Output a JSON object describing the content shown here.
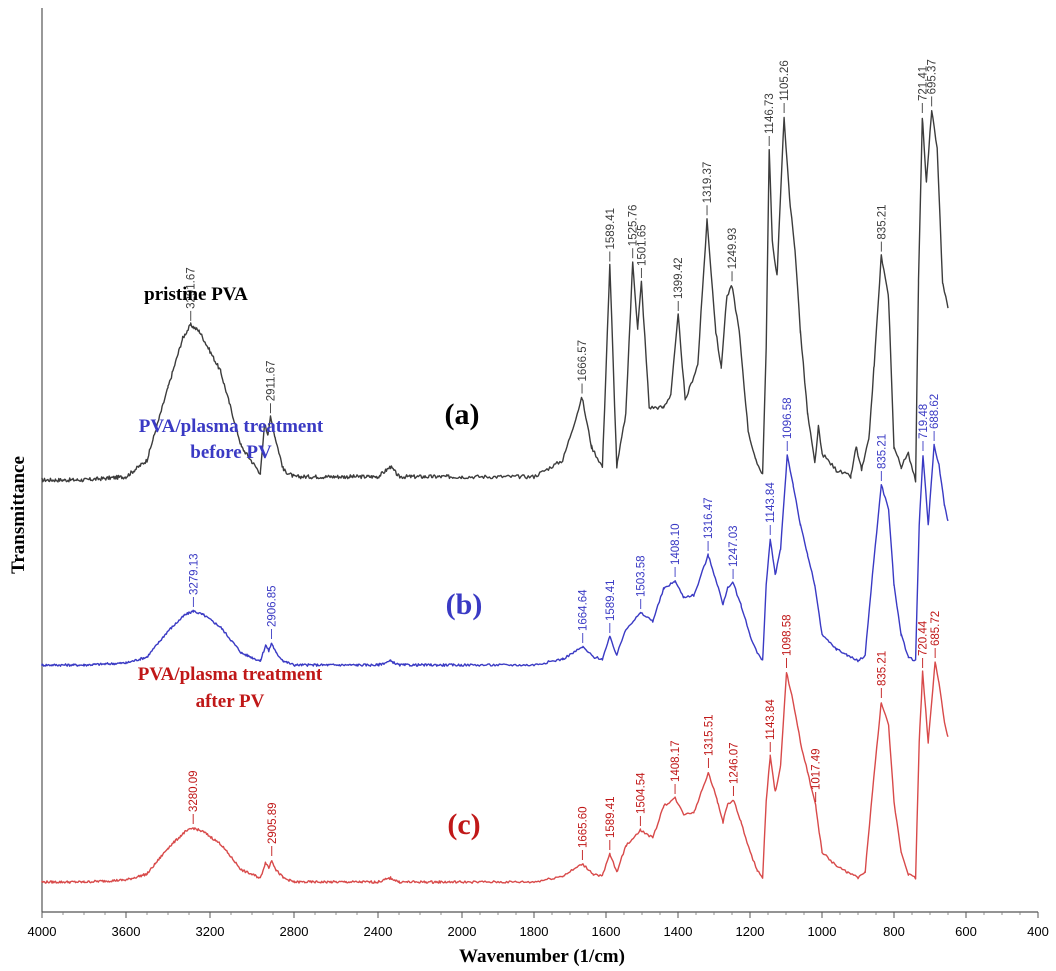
{
  "chart_data": {
    "type": "line",
    "xlabel": "Wavenumber (1/cm)",
    "ylabel": "Transmittance",
    "xlim": [
      4000,
      400
    ],
    "x_reversed": true,
    "x_ticks": [
      "4000",
      "3600",
      "3200",
      "2800",
      "2400",
      "2000",
      "1800",
      "1600",
      "1400",
      "1200",
      "1000",
      "800",
      "600",
      "400"
    ],
    "grid": false,
    "series": [
      {
        "id": "a",
        "panel_label": "(a)",
        "name": "pristine PVA",
        "color": "#3c3c3c",
        "points": [
          [
            4000,
            0.0
          ],
          [
            3800,
            0.0
          ],
          [
            3600,
            0.01
          ],
          [
            3500,
            0.06
          ],
          [
            3400,
            0.28
          ],
          [
            3330,
            0.43
          ],
          [
            3291.67,
            0.47
          ],
          [
            3250,
            0.45
          ],
          [
            3150,
            0.33
          ],
          [
            3050,
            0.1
          ],
          [
            2960,
            0.02
          ],
          [
            2940,
            0.17
          ],
          [
            2925,
            0.14
          ],
          [
            2911.67,
            0.19
          ],
          [
            2890,
            0.13
          ],
          [
            2850,
            0.03
          ],
          [
            2800,
            0.01
          ],
          [
            2400,
            0.01
          ],
          [
            2340,
            0.04
          ],
          [
            2300,
            0.01
          ],
          [
            1800,
            0.01
          ],
          [
            1720,
            0.06
          ],
          [
            1666.57,
            0.25
          ],
          [
            1640,
            0.1
          ],
          [
            1610,
            0.04
          ],
          [
            1589.41,
            0.65
          ],
          [
            1570,
            0.04
          ],
          [
            1545,
            0.2
          ],
          [
            1525.76,
            0.66
          ],
          [
            1512,
            0.46
          ],
          [
            1501.65,
            0.6
          ],
          [
            1480,
            0.22
          ],
          [
            1440,
            0.22
          ],
          [
            1420,
            0.26
          ],
          [
            1399.42,
            0.5
          ],
          [
            1380,
            0.24
          ],
          [
            1345,
            0.35
          ],
          [
            1319.37,
            0.79
          ],
          [
            1295,
            0.45
          ],
          [
            1280,
            0.34
          ],
          [
            1265,
            0.55
          ],
          [
            1249.93,
            0.59
          ],
          [
            1230,
            0.45
          ],
          [
            1205,
            0.15
          ],
          [
            1185,
            0.06
          ],
          [
            1165,
            0.02
          ],
          [
            1155,
            0.4
          ],
          [
            1146.73,
            1.0
          ],
          [
            1138,
            0.72
          ],
          [
            1125,
            0.62
          ],
          [
            1105.26,
            1.1
          ],
          [
            1090,
            0.85
          ],
          [
            1075,
            0.7
          ],
          [
            1060,
            0.45
          ],
          [
            1040,
            0.2
          ],
          [
            1020,
            0.05
          ],
          [
            1010,
            0.16
          ],
          [
            1000,
            0.08
          ],
          [
            960,
            0.03
          ],
          [
            920,
            0.01
          ],
          [
            905,
            0.1
          ],
          [
            890,
            0.03
          ],
          [
            870,
            0.12
          ],
          [
            855,
            0.35
          ],
          [
            835.21,
            0.68
          ],
          [
            815,
            0.55
          ],
          [
            800,
            0.1
          ],
          [
            780,
            0.04
          ],
          [
            760,
            0.08
          ],
          [
            740,
            0.0
          ],
          [
            732,
            0.6
          ],
          [
            721.41,
            1.1
          ],
          [
            710,
            0.9
          ],
          [
            695.37,
            1.12
          ],
          [
            680,
            1.0
          ],
          [
            665,
            0.6
          ],
          [
            650,
            0.52
          ]
        ],
        "peaks": [
          3291.67,
          2911.67,
          1666.57,
          1589.41,
          1525.76,
          1501.65,
          1399.42,
          1319.37,
          1249.93,
          1146.73,
          1105.26,
          835.21,
          721.41,
          695.37
        ],
        "peak_labels": [
          "3291.67",
          "2911.67",
          "1666.57",
          "1589.41",
          "1525.76",
          "1501.65",
          "1399.42",
          "1319.37",
          "1249.93",
          "1146.73",
          "1105.26",
          "835.21",
          "721.41",
          "695.37"
        ]
      },
      {
        "id": "b",
        "panel_label": "(b)",
        "name": "PVA/plasma treatment before PV",
        "name_lines": [
          "PVA/plasma treatment",
          "before PV"
        ],
        "color": "#3a3ac4",
        "points": [
          [
            4000,
            0.0
          ],
          [
            3800,
            0.0
          ],
          [
            3600,
            0.01
          ],
          [
            3500,
            0.04
          ],
          [
            3400,
            0.17
          ],
          [
            3320,
            0.25
          ],
          [
            3279.13,
            0.27
          ],
          [
            3230,
            0.25
          ],
          [
            3150,
            0.19
          ],
          [
            3050,
            0.06
          ],
          [
            2960,
            0.02
          ],
          [
            2935,
            0.1
          ],
          [
            2920,
            0.07
          ],
          [
            2906.85,
            0.11
          ],
          [
            2885,
            0.06
          ],
          [
            2850,
            0.02
          ],
          [
            2800,
            0.0
          ],
          [
            2400,
            0.0
          ],
          [
            2340,
            0.02
          ],
          [
            2300,
            0.0
          ],
          [
            1800,
            0.0
          ],
          [
            1720,
            0.03
          ],
          [
            1664.64,
            0.09
          ],
          [
            1635,
            0.04
          ],
          [
            1610,
            0.03
          ],
          [
            1589.41,
            0.14
          ],
          [
            1570,
            0.05
          ],
          [
            1545,
            0.18
          ],
          [
            1503.58,
            0.26
          ],
          [
            1470,
            0.22
          ],
          [
            1440,
            0.38
          ],
          [
            1408.1,
            0.42
          ],
          [
            1385,
            0.34
          ],
          [
            1355,
            0.35
          ],
          [
            1316.47,
            0.55
          ],
          [
            1290,
            0.4
          ],
          [
            1275,
            0.3
          ],
          [
            1262,
            0.39
          ],
          [
            1247.03,
            0.41
          ],
          [
            1225,
            0.3
          ],
          [
            1200,
            0.15
          ],
          [
            1180,
            0.06
          ],
          [
            1165,
            0.02
          ],
          [
            1155,
            0.4
          ],
          [
            1143.84,
            0.63
          ],
          [
            1130,
            0.45
          ],
          [
            1115,
            0.58
          ],
          [
            1096.58,
            1.05
          ],
          [
            1080,
            0.9
          ],
          [
            1060,
            0.7
          ],
          [
            1040,
            0.55
          ],
          [
            1020,
            0.4
          ],
          [
            1000,
            0.15
          ],
          [
            960,
            0.08
          ],
          [
            930,
            0.05
          ],
          [
            900,
            0.02
          ],
          [
            880,
            0.05
          ],
          [
            860,
            0.45
          ],
          [
            835.21,
            0.9
          ],
          [
            815,
            0.78
          ],
          [
            800,
            0.4
          ],
          [
            780,
            0.15
          ],
          [
            760,
            0.04
          ],
          [
            740,
            0.02
          ],
          [
            730,
            0.7
          ],
          [
            719.48,
            1.05
          ],
          [
            705,
            0.7
          ],
          [
            688.62,
            1.1
          ],
          [
            675,
            1.0
          ],
          [
            660,
            0.8
          ],
          [
            650,
            0.72
          ]
        ],
        "peaks": [
          3279.13,
          2906.85,
          1664.64,
          1589.41,
          1503.58,
          1408.1,
          1316.47,
          1247.03,
          1143.84,
          1096.58,
          835.21,
          719.48,
          688.62
        ],
        "peak_labels": [
          "3279.13",
          "2906.85",
          "1664.64",
          "1589.41",
          "1503.58",
          "1408.10",
          "1316.47",
          "1247.03",
          "1143.84",
          "1096.58",
          "835.21",
          "719.48",
          "688.62"
        ]
      },
      {
        "id": "c",
        "panel_label": "(c)",
        "name": "PVA/plasma treatment after PV",
        "name_lines": [
          "PVA/plasma treatment",
          "after PV"
        ],
        "color": "#d84a4a",
        "label_color": "#c01818",
        "points": [
          [
            4000,
            0.0
          ],
          [
            3800,
            0.0
          ],
          [
            3600,
            0.01
          ],
          [
            3500,
            0.04
          ],
          [
            3400,
            0.17
          ],
          [
            3320,
            0.25
          ],
          [
            3280.09,
            0.27
          ],
          [
            3230,
            0.25
          ],
          [
            3150,
            0.19
          ],
          [
            3050,
            0.06
          ],
          [
            2960,
            0.02
          ],
          [
            2935,
            0.1
          ],
          [
            2920,
            0.07
          ],
          [
            2905.89,
            0.11
          ],
          [
            2885,
            0.06
          ],
          [
            2850,
            0.02
          ],
          [
            2800,
            0.0
          ],
          [
            2400,
            0.0
          ],
          [
            2340,
            0.02
          ],
          [
            2300,
            0.0
          ],
          [
            1800,
            0.0
          ],
          [
            1720,
            0.03
          ],
          [
            1665.6,
            0.09
          ],
          [
            1635,
            0.04
          ],
          [
            1610,
            0.03
          ],
          [
            1589.41,
            0.14
          ],
          [
            1570,
            0.05
          ],
          [
            1545,
            0.18
          ],
          [
            1504.54,
            0.26
          ],
          [
            1470,
            0.22
          ],
          [
            1440,
            0.38
          ],
          [
            1408.17,
            0.42
          ],
          [
            1385,
            0.34
          ],
          [
            1355,
            0.35
          ],
          [
            1315.51,
            0.55
          ],
          [
            1290,
            0.4
          ],
          [
            1275,
            0.3
          ],
          [
            1262,
            0.39
          ],
          [
            1246.07,
            0.41
          ],
          [
            1225,
            0.3
          ],
          [
            1200,
            0.15
          ],
          [
            1180,
            0.06
          ],
          [
            1165,
            0.02
          ],
          [
            1155,
            0.4
          ],
          [
            1143.84,
            0.63
          ],
          [
            1130,
            0.45
          ],
          [
            1115,
            0.58
          ],
          [
            1098.58,
            1.05
          ],
          [
            1080,
            0.9
          ],
          [
            1060,
            0.7
          ],
          [
            1040,
            0.55
          ],
          [
            1017.49,
            0.38
          ],
          [
            1000,
            0.15
          ],
          [
            960,
            0.08
          ],
          [
            930,
            0.05
          ],
          [
            900,
            0.02
          ],
          [
            880,
            0.05
          ],
          [
            860,
            0.45
          ],
          [
            835.21,
            0.9
          ],
          [
            815,
            0.78
          ],
          [
            800,
            0.4
          ],
          [
            780,
            0.15
          ],
          [
            760,
            0.04
          ],
          [
            740,
            0.02
          ],
          [
            730,
            0.7
          ],
          [
            720.44,
            1.05
          ],
          [
            705,
            0.7
          ],
          [
            685.72,
            1.1
          ],
          [
            675,
            1.0
          ],
          [
            660,
            0.8
          ],
          [
            650,
            0.72
          ]
        ],
        "peaks": [
          3280.09,
          2905.89,
          1665.6,
          1589.41,
          1504.54,
          1408.17,
          1315.51,
          1246.07,
          1143.84,
          1098.58,
          1017.49,
          835.21,
          720.44,
          685.72
        ],
        "peak_labels": [
          "3280.09",
          "2905.89",
          "1665.60",
          "1589.41",
          "1504.54",
          "1408.17",
          "1315.51",
          "1246.07",
          "1143.84",
          "1098.58",
          "1017.49",
          "835.21",
          "720.44",
          "685.72"
        ]
      }
    ]
  }
}
